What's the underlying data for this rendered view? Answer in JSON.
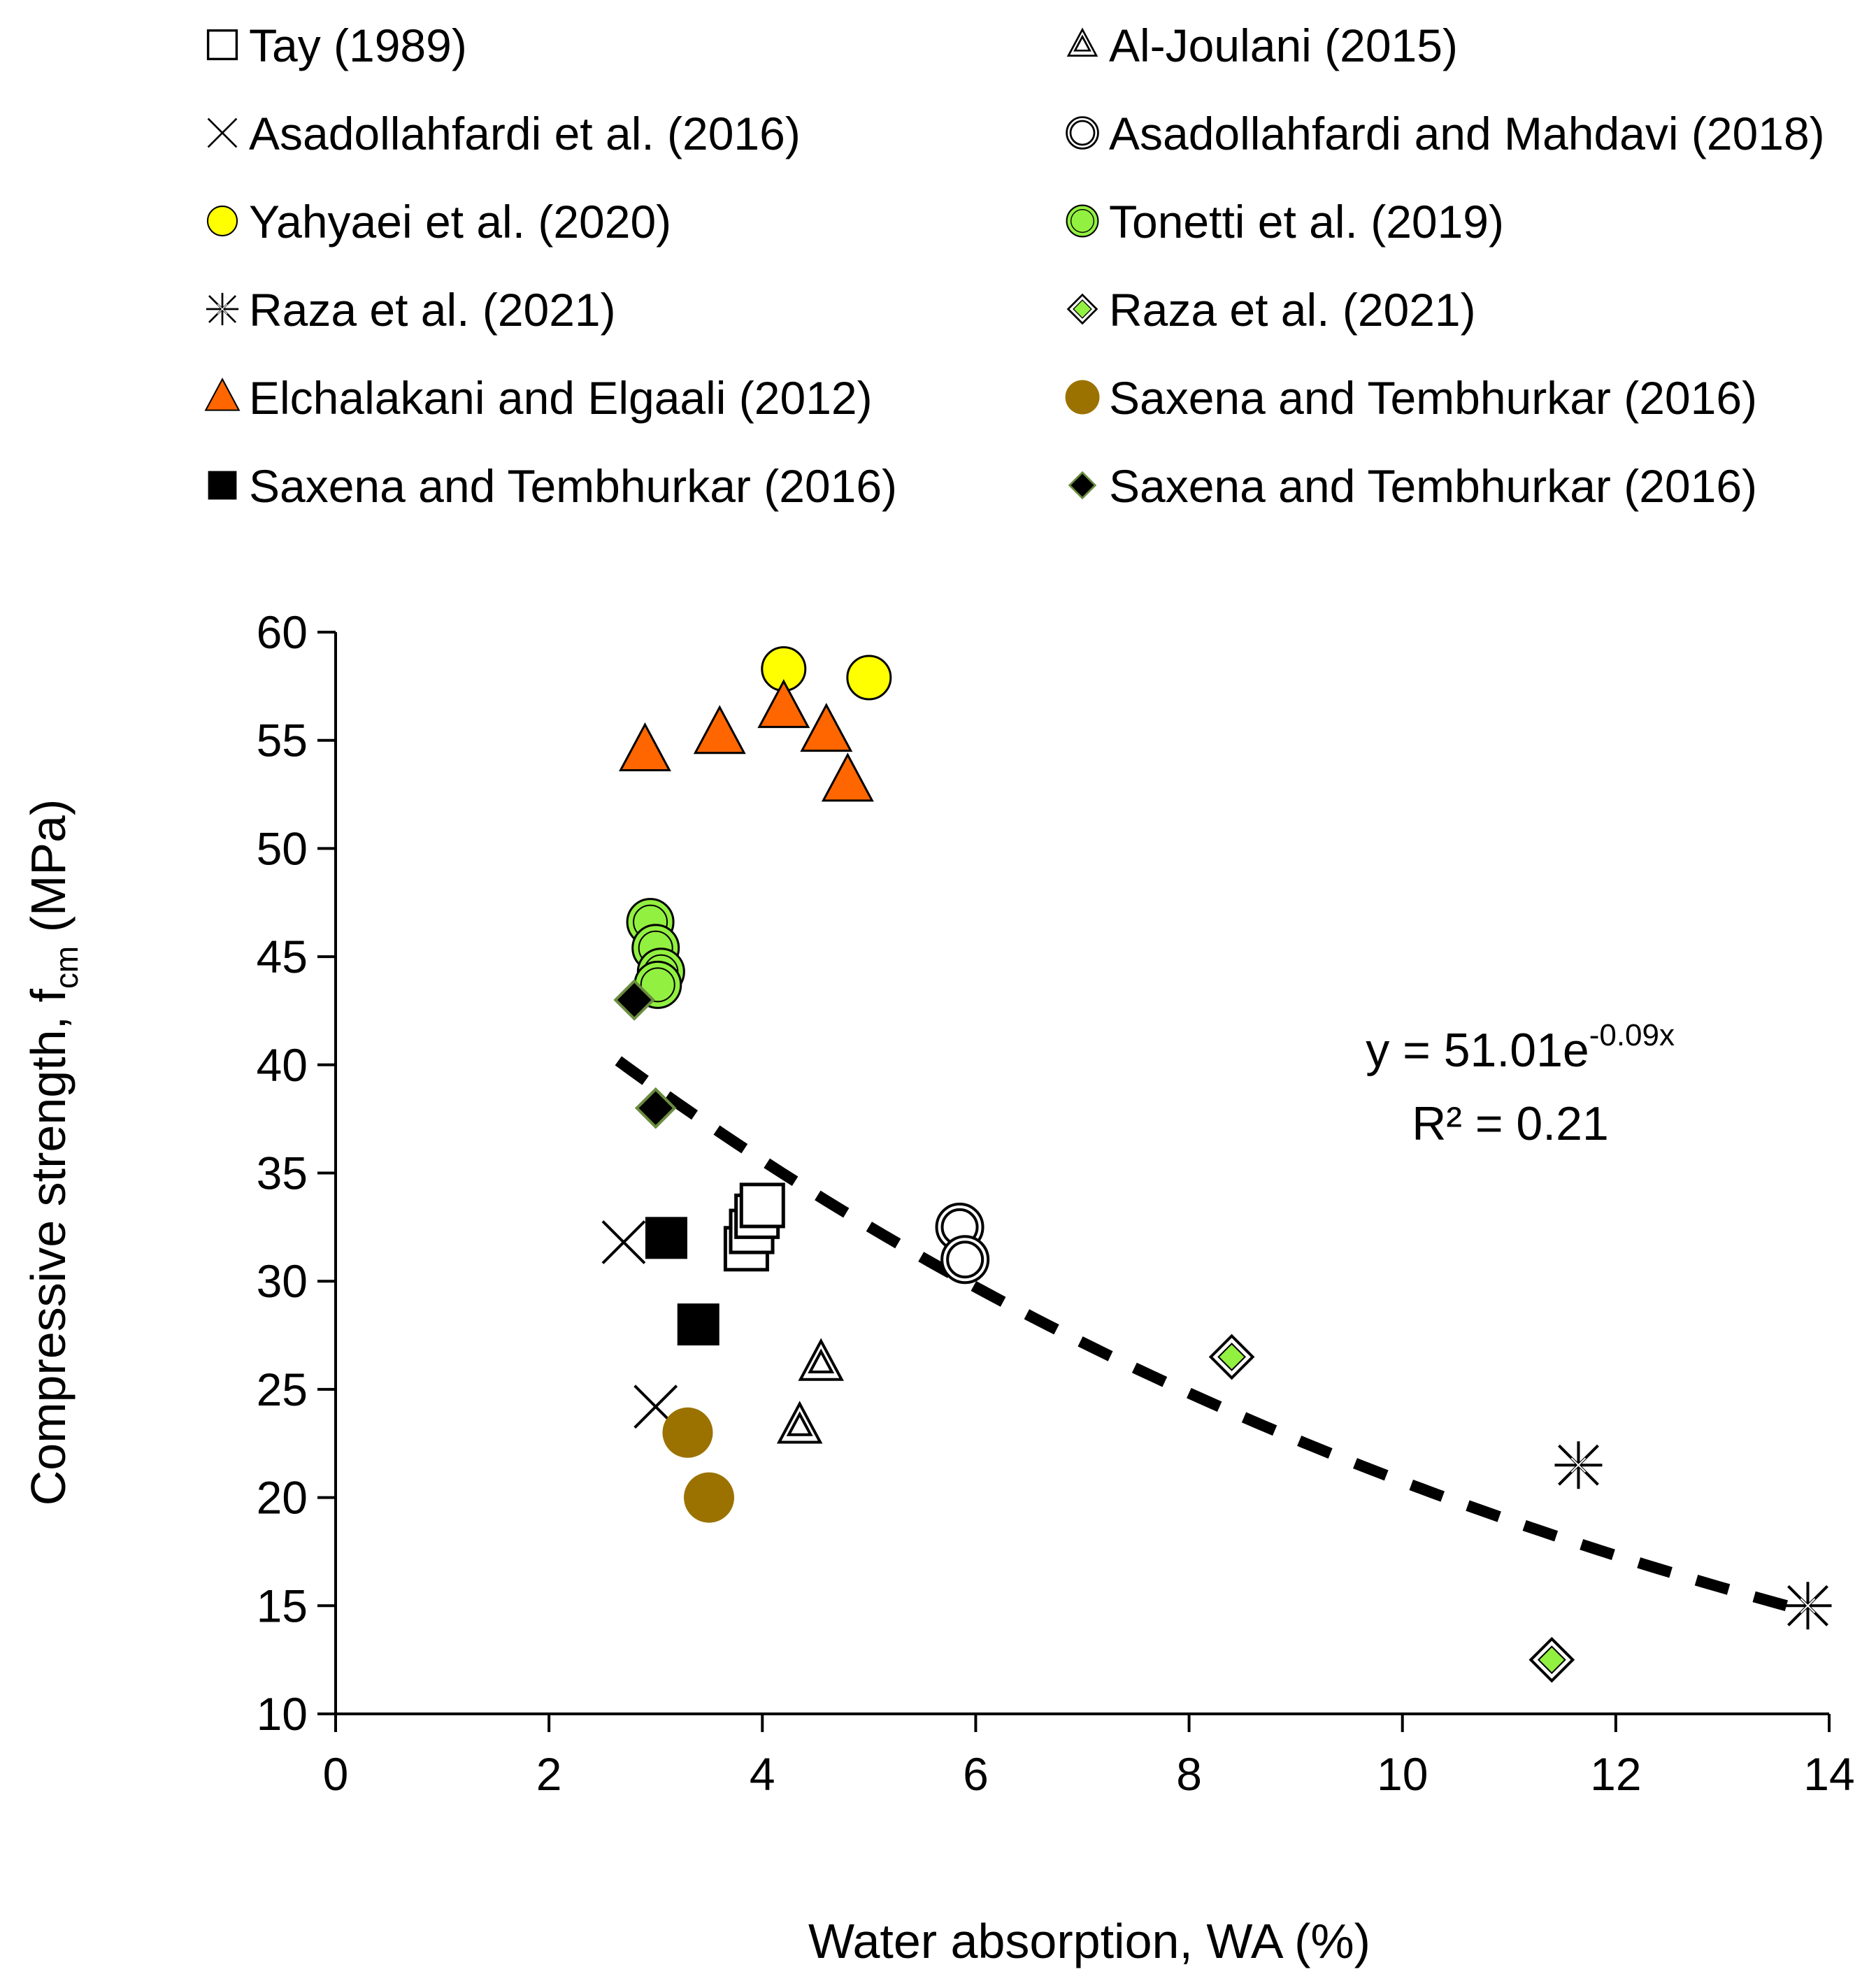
{
  "chart_data": {
    "type": "scatter",
    "title": "",
    "xlabel": "Water absorption, WA (%)",
    "ylabel": {
      "main": "Compressive strength, f",
      "sub": "cm",
      "unit": " (MPa)"
    },
    "xlim": [
      0,
      14
    ],
    "ylim": [
      10,
      60
    ],
    "xticks": [
      0,
      2,
      4,
      6,
      8,
      10,
      12,
      14
    ],
    "yticks": [
      10,
      15,
      20,
      25,
      30,
      35,
      40,
      45,
      50,
      55,
      60
    ],
    "grid": false,
    "legend_position": "top",
    "annotation": {
      "eq_prefix": "y = 51.01e",
      "eq_exp": "-0.09x",
      "r2": "R² = 0.21"
    },
    "trendline": {
      "type": "exponential",
      "a": 51.01,
      "b": -0.09,
      "x_range": [
        2.65,
        13.8
      ]
    },
    "colors": {
      "yellow": "#FFFF00",
      "lightgreen": "#92F040",
      "orange": "#FF6600",
      "brown": "#9B7200",
      "black": "#000000",
      "white": "#ffffff"
    },
    "series": [
      {
        "name": "Tay (1989)",
        "marker": "square-open",
        "points": [
          [
            3.85,
            31.5
          ],
          [
            3.9,
            32.3
          ],
          [
            3.95,
            33.0
          ],
          [
            4.0,
            33.5
          ]
        ]
      },
      {
        "name": "Al-Joulani (2015)",
        "marker": "triangle-double",
        "points": [
          [
            4.55,
            26.2
          ],
          [
            4.35,
            23.3
          ]
        ]
      },
      {
        "name": "Asadollahfardi et al. (2016)",
        "marker": "x",
        "points": [
          [
            2.7,
            31.8
          ],
          [
            3.0,
            24.2
          ]
        ]
      },
      {
        "name": "Asadollahfardi and Mahdavi (2018)",
        "marker": "circle-ring",
        "points": [
          [
            5.85,
            32.5
          ],
          [
            5.9,
            31.0
          ]
        ]
      },
      {
        "name": "Yahyaei et al. (2020)",
        "marker": "circle-yellow",
        "points": [
          [
            4.2,
            58.3
          ],
          [
            5.0,
            57.9
          ]
        ]
      },
      {
        "name": "Tonetti et al. (2019)",
        "marker": "circle-green",
        "points": [
          [
            2.95,
            46.6
          ],
          [
            3.0,
            45.4
          ],
          [
            3.05,
            44.3
          ],
          [
            3.02,
            43.7
          ]
        ]
      },
      {
        "name": "Raza et al. (2021)",
        "marker": "asterisk",
        "points": [
          [
            11.65,
            21.5
          ],
          [
            13.8,
            15.0
          ]
        ]
      },
      {
        "name": "Raza et al. (2021)",
        "marker": "diamond-green",
        "points": [
          [
            8.4,
            26.5
          ],
          [
            11.4,
            12.5
          ]
        ]
      },
      {
        "name": "Elchalakani and Elgaali (2012)",
        "marker": "triangle-orange",
        "points": [
          [
            2.9,
            54.5
          ],
          [
            3.6,
            55.3
          ],
          [
            4.2,
            56.5
          ],
          [
            4.6,
            55.4
          ],
          [
            4.8,
            53.1
          ]
        ]
      },
      {
        "name": "Saxena and Tembhurkar (2016)",
        "marker": "circle-brown",
        "points": [
          [
            3.3,
            23.0
          ],
          [
            3.5,
            20.0
          ]
        ]
      },
      {
        "name": "Saxena and Tembhurkar (2016)",
        "marker": "square-black",
        "points": [
          [
            3.1,
            32.0
          ],
          [
            3.4,
            28.0
          ]
        ]
      },
      {
        "name": "Saxena and Tembhurkar (2016)",
        "marker": "diamond-black",
        "points": [
          [
            2.8,
            43.0
          ],
          [
            3.0,
            38.0
          ]
        ]
      }
    ]
  }
}
